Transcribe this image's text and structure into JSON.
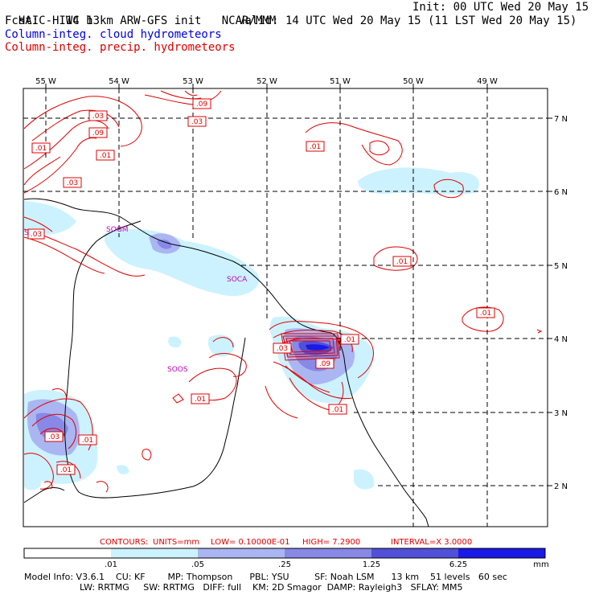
{
  "header": {
    "title": "HAIC-HIWC 13km ARW-GFS init",
    "source": "NCAR/MMM",
    "init": "Init: 00 UTC Wed 20 May 15",
    "fcst": "Fcst:    14 h",
    "valid": "Valid: 14 UTC Wed 20 May 15 (11 LST Wed 20 May 15)",
    "field_blue": "Column-integ. cloud hydrometeors",
    "field_red": "Column-integ. precip. hydrometeors"
  },
  "axes": {
    "lon_labels": [
      "55 W",
      "54 W",
      "53 W",
      "52 W",
      "51 W",
      "50 W",
      "49 W"
    ],
    "lat_labels": [
      "7 N",
      "6 N",
      "5 N",
      "4 N",
      "3 N",
      "2 N"
    ]
  },
  "stations": [
    "SMJP",
    "SOGM",
    "SOCA",
    "SOOS"
  ],
  "contour_labels": [
    ".03",
    ".09",
    ".09",
    ".03",
    ".01",
    ".01",
    ".03",
    ".01",
    ".01",
    ".01",
    ".03",
    ".01",
    ".09",
    ".01",
    ".01",
    ".03",
    ".01",
    ".01",
    ".03"
  ],
  "contour_info": {
    "contours": "CONTOURS:",
    "units": "UNITS=mm",
    "low": "LOW= 0.10000E-01",
    "high": "HIGH=  7.2900",
    "interval": "INTERVAL=X  3.0000"
  },
  "colorbar": {
    "ticks": [
      ".01",
      ".05",
      ".25",
      "1.25",
      "6.25"
    ],
    "unit": "mm",
    "colors": [
      "#ffffff",
      "#ccf2ff",
      "#aab6f2",
      "#8888e6",
      "#5050d8",
      "#1a1ae6"
    ]
  },
  "model_info": {
    "line1": "Model Info: V3.6.1    CU: KF        MP: Thompson      PBL: YSU         SF: Noah LSM      13 km    51 levels   60 sec",
    "line2": "LW: RRTMG     SW: RRTMG   DIFF: full    KM: 2D Smagor  DAMP: Rayleigh3   SFLAY: MM5"
  }
}
